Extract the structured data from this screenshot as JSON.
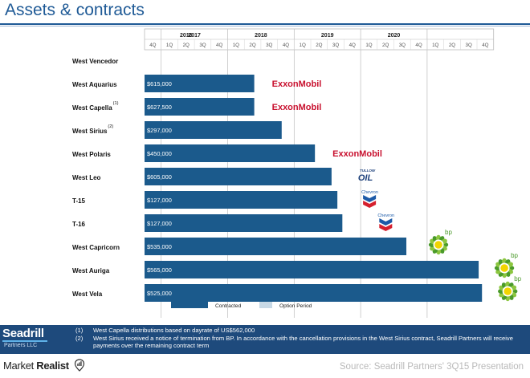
{
  "title": "Assets & contracts",
  "chart_data": {
    "type": "gantt-bar",
    "years": [
      "2016",
      "2017",
      "2018",
      "2019",
      "2020"
    ],
    "quarters_row": [
      "4Q",
      "1Q",
      "2Q",
      "3Q",
      "4Q",
      "1Q",
      "2Q",
      "3Q",
      "4Q",
      "1Q",
      "2Q",
      "3Q",
      "4Q",
      "1Q",
      "2Q",
      "3Q",
      "4Q",
      "1Q",
      "2Q",
      "3Q",
      "4Q"
    ],
    "x_unit": "quarters from start of 4Q 2015",
    "rigs": [
      {
        "name": "West Vencedor",
        "footnote": "",
        "label": "",
        "end": 0
      },
      {
        "name": "West Aquarius",
        "footnote": "",
        "label": "$615,000",
        "end": 6.6,
        "customer": "ExxonMobil"
      },
      {
        "name": "West Capella",
        "footnote": "(1)",
        "label": "$627,500",
        "end": 6.6,
        "customer": "ExxonMobil"
      },
      {
        "name": "West Sirius",
        "footnote": "(2)",
        "label": "$297,000",
        "end": 8.25,
        "customer": ""
      },
      {
        "name": "West Polaris",
        "footnote": "",
        "label": "$450,000",
        "end": 10.25,
        "customer": "ExxonMobil"
      },
      {
        "name": "West Leo",
        "footnote": "",
        "label": "$605,000",
        "end": 11.25,
        "customer": "Tullow Oil"
      },
      {
        "name": "T-15",
        "footnote": "",
        "label": "$127,000",
        "end": 11.6,
        "customer": "Chevron"
      },
      {
        "name": "T-16",
        "footnote": "",
        "label": "$127,000",
        "end": 11.9,
        "customer": "Chevron"
      },
      {
        "name": "West Capricorn",
        "footnote": "",
        "label": "$535,000",
        "end": 15.75,
        "customer": "bp"
      },
      {
        "name": "West Auriga",
        "footnote": "",
        "label": "$565,000",
        "end": 20.1,
        "customer": "bp"
      },
      {
        "name": "West Vela",
        "footnote": "",
        "label": "$525,000",
        "end": 20.3,
        "customer": "bp"
      }
    ],
    "legend": [
      {
        "name": "Contracted",
        "color": "#1b5a8c"
      },
      {
        "name": "Option Period",
        "color": "#c8d9e6"
      }
    ],
    "colors": {
      "bar": "#1b5a8c",
      "exxon": "#c8102e",
      "chevron_red": "#d5202e",
      "chevron_blue": "#1c5aa8",
      "bp_green": "#4a9a2a",
      "bp_yellow": "#f1d400"
    }
  },
  "customers": {
    "exxon": "ExxonMobil",
    "tullow_top": "TULLOW",
    "tullow_mark": "OIL",
    "chevron": "Chevron",
    "bp": "bp"
  },
  "footer": {
    "logo_name": "Seadrill",
    "logo_sub": "Partners LLC",
    "notes": [
      {
        "num": "(1)",
        "text": "West Capella distributions based on dayrate of US$562,000"
      },
      {
        "num": "(2)",
        "text": "West Sirius received a notice of termination from BP.  In accordance with the cancellation provisions in the West Sirius contract, Seadrill Partners will receive payments over the remaining contract term"
      }
    ]
  },
  "branding": {
    "site_prefix": "Market ",
    "site_suffix": "Realist",
    "source": "Source: Seadrill Partners' 3Q15 Presentation"
  }
}
